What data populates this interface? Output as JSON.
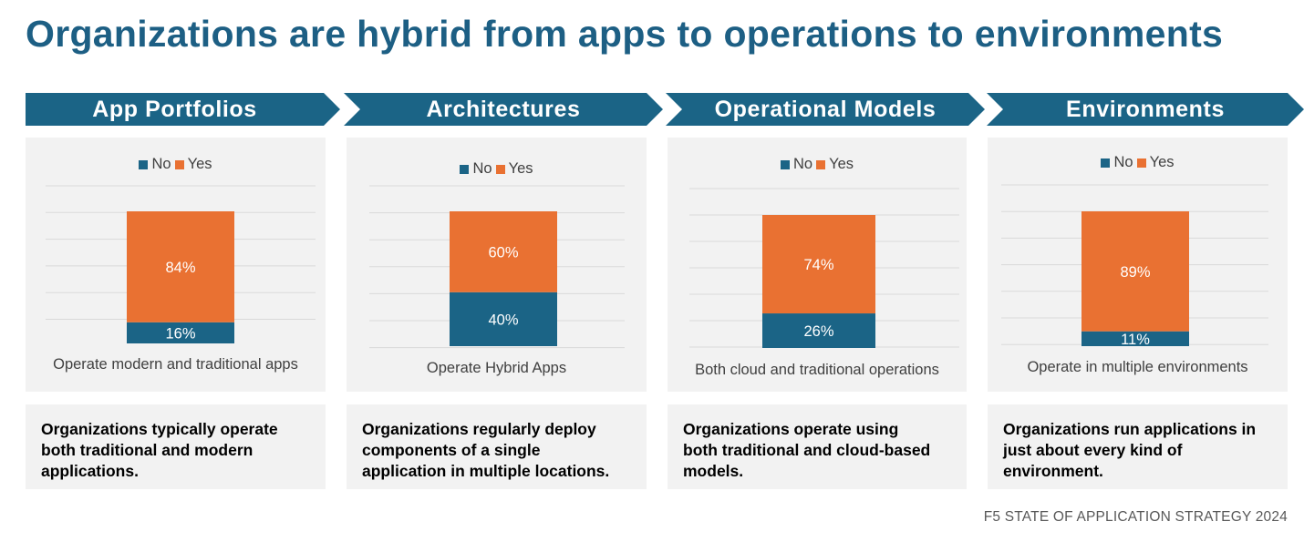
{
  "title": "Organizations are hybrid from apps to operations to environments",
  "colors": {
    "no": "#1b6486",
    "yes": "#e97132",
    "banner": "#1b6486",
    "panel": "#f2f2f2",
    "title": "#1d5f84"
  },
  "legend": {
    "no": "No",
    "yes": "Yes"
  },
  "panels": [
    {
      "banner": "App Portfolios",
      "caption": "Operate modern and traditional apps",
      "text": [
        "Organizations typically operate",
        "both traditional and modern",
        "applications."
      ]
    },
    {
      "banner": "Architectures",
      "caption": "Operate Hybrid Apps",
      "text": [
        "Organizations regularly deploy",
        "components of a single",
        "application in multiple locations."
      ]
    },
    {
      "banner": "Operational Models",
      "caption": "Both cloud and traditional operations",
      "text": [
        "Organizations operate using",
        "both traditional and cloud-based",
        "models."
      ]
    },
    {
      "banner": "Environments",
      "caption": "Operate in multiple environments",
      "text": [
        "Organizations run applications in",
        "just about every kind of",
        "environment."
      ]
    }
  ],
  "chart_data": [
    {
      "type": "bar",
      "stacked": true,
      "categories": [
        "Operate modern and traditional apps"
      ],
      "series": [
        {
          "name": "No",
          "values": [
            16
          ],
          "label": "16%"
        },
        {
          "name": "Yes",
          "values": [
            84
          ],
          "label": "84%"
        }
      ],
      "ylim": [
        0,
        100
      ],
      "grid": true,
      "legend": "top"
    },
    {
      "type": "bar",
      "stacked": true,
      "categories": [
        "Operate Hybrid Apps"
      ],
      "series": [
        {
          "name": "No",
          "values": [
            40
          ],
          "label": "40%"
        },
        {
          "name": "Yes",
          "values": [
            60
          ],
          "label": "60%"
        }
      ],
      "ylim": [
        0,
        100
      ],
      "grid": true,
      "legend": "top"
    },
    {
      "type": "bar",
      "stacked": true,
      "categories": [
        "Both cloud and traditional operations"
      ],
      "series": [
        {
          "name": "No",
          "values": [
            26
          ],
          "label": "26%"
        },
        {
          "name": "Yes",
          "values": [
            74
          ],
          "label": "74%"
        }
      ],
      "ylim": [
        0,
        100
      ],
      "grid": true,
      "legend": "top"
    },
    {
      "type": "bar",
      "stacked": true,
      "categories": [
        "Operate in multiple environments"
      ],
      "series": [
        {
          "name": "No",
          "values": [
            11
          ],
          "label": "11%"
        },
        {
          "name": "Yes",
          "values": [
            89
          ],
          "label": "89%"
        }
      ],
      "ylim": [
        0,
        100
      ],
      "grid": true,
      "legend": "top"
    }
  ],
  "footer": "F5 STATE OF APPLICATION STRATEGY 2024"
}
